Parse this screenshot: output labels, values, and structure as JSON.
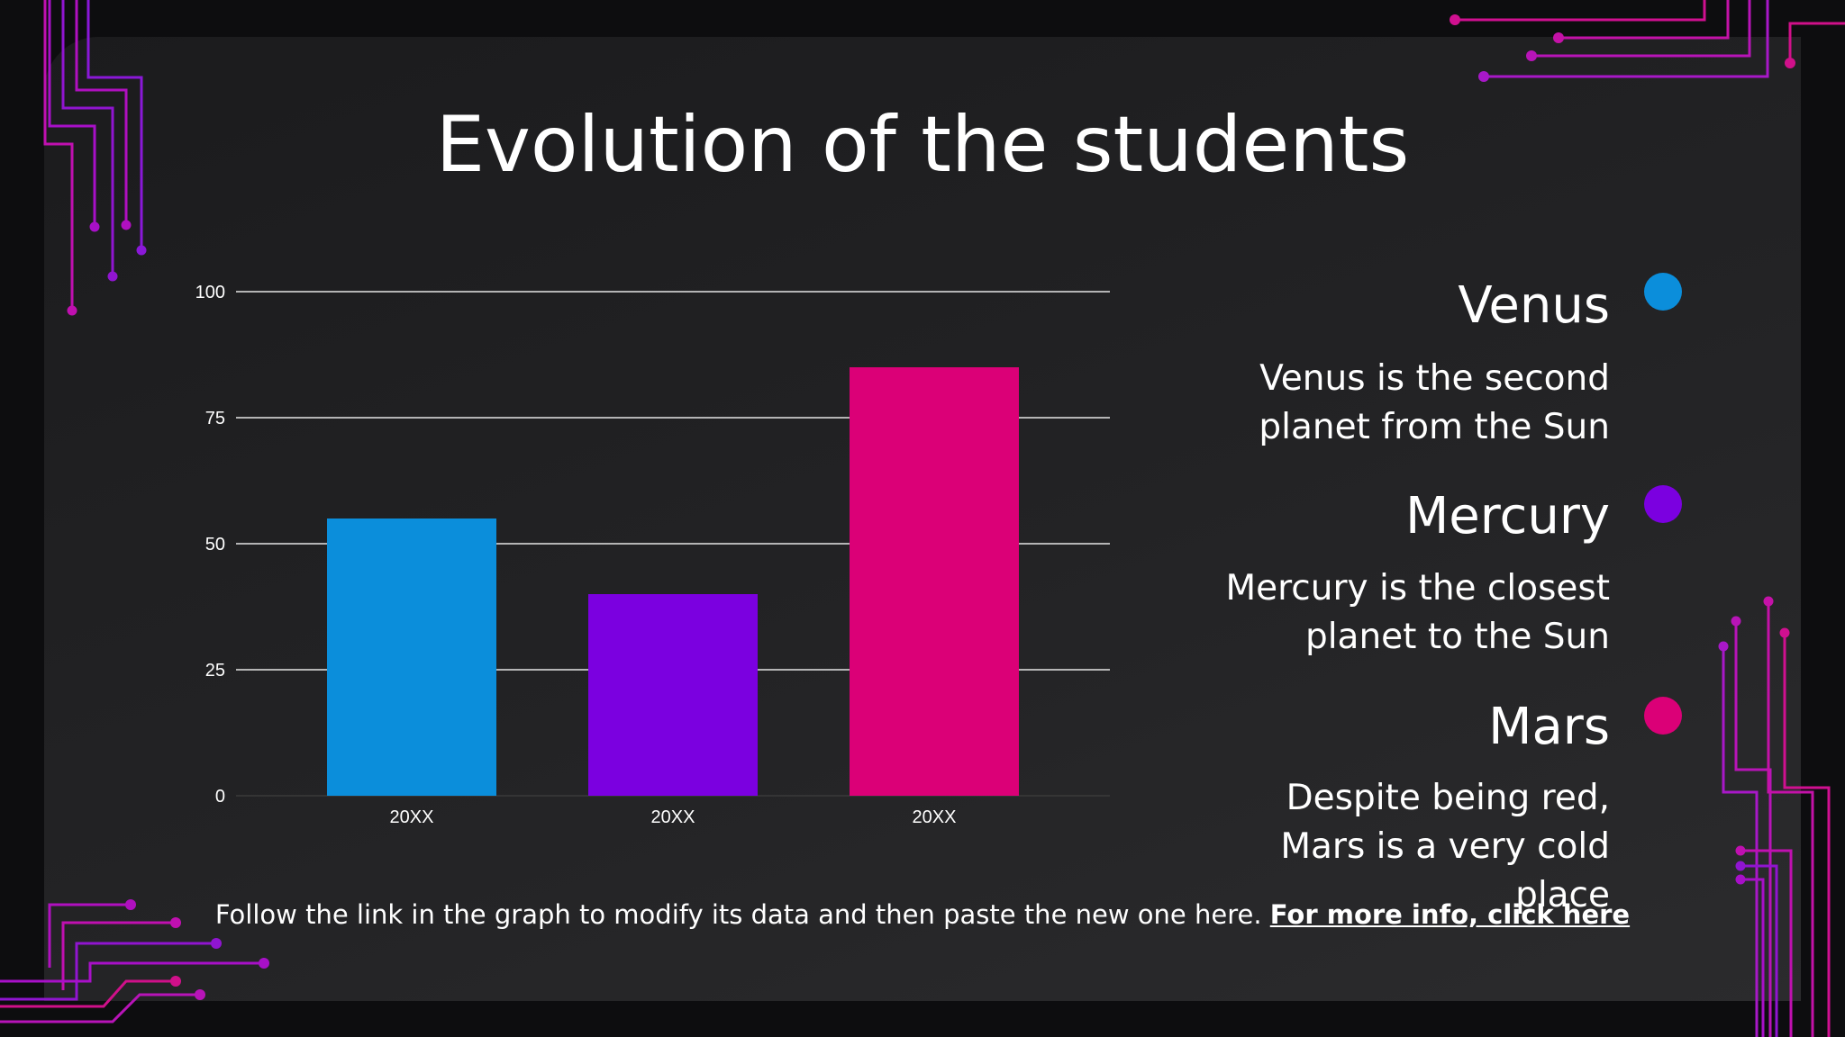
{
  "title": "Evolution of the students",
  "colors": {
    "venus": "#0b8edb",
    "mercury": "#7b00e0",
    "mars": "#db0077",
    "circuit": "#c810b8"
  },
  "chart_data": {
    "type": "bar",
    "categories": [
      "20XX",
      "20XX",
      "20XX"
    ],
    "values": [
      55,
      40,
      85
    ],
    "colors": [
      "#0b8edb",
      "#7b00e0",
      "#db0077"
    ],
    "yticks": [
      0,
      25,
      50,
      75,
      100
    ],
    "ylim": [
      0,
      100
    ],
    "grid": true,
    "title": "",
    "xlabel": "",
    "ylabel": ""
  },
  "legend": [
    {
      "name": "Venus",
      "description": "Venus is the second planet from the Sun"
    },
    {
      "name": "Mercury",
      "description": "Mercury is the closest planet to the Sun"
    },
    {
      "name": "Mars",
      "description": "Despite being red, Mars is a very cold place"
    }
  ],
  "footer": {
    "text": "Follow the link in the graph to modify its data and then paste the new one here. ",
    "link": "For more info, click here"
  }
}
